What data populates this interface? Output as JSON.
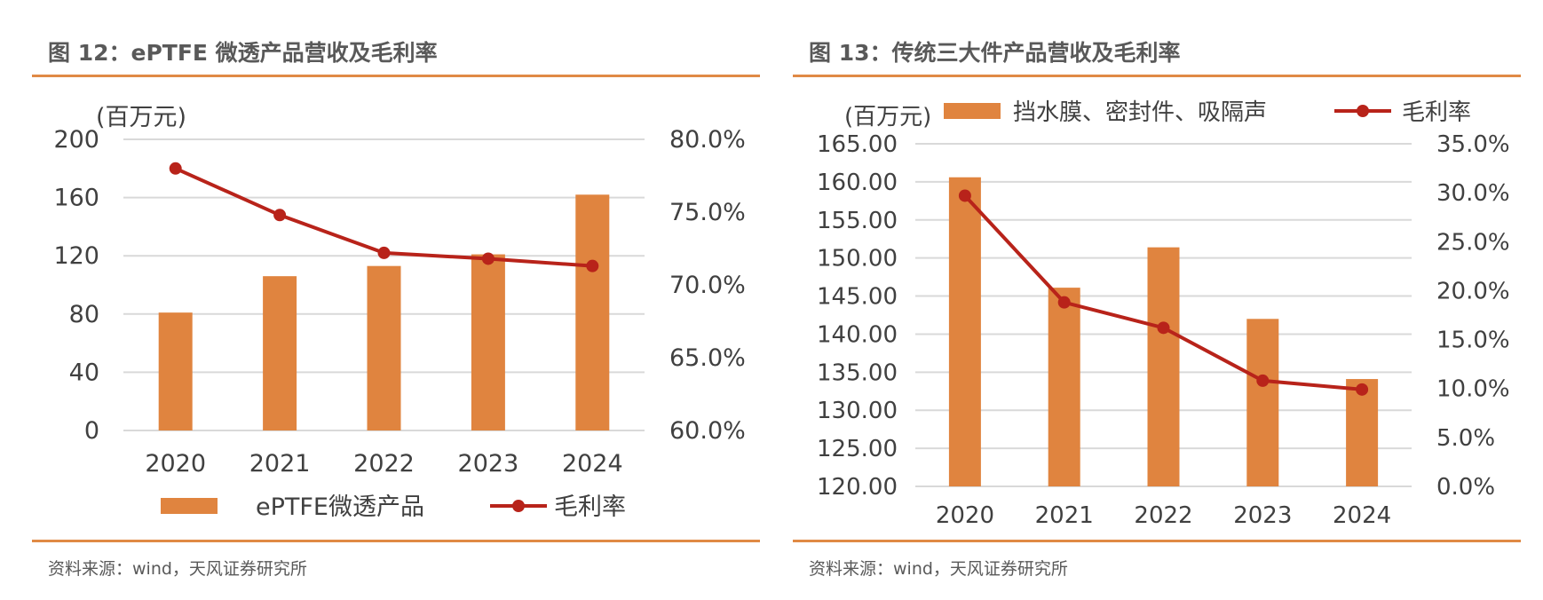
{
  "chart_data": [
    {
      "type": "bar+line",
      "title": "图 12：ePTFE 微透产品营收及毛利率",
      "unit_label": "(百万元)",
      "categories": [
        "2020",
        "2021",
        "2022",
        "2023",
        "2024"
      ],
      "left_axis": {
        "ylim": [
          0,
          200
        ],
        "ticks": [
          "0",
          "40",
          "80",
          "120",
          "160",
          "200"
        ]
      },
      "right_axis": {
        "ylim": [
          60,
          80
        ],
        "ticks": [
          "60.0%",
          "65.0%",
          "70.0%",
          "75.0%",
          "80.0%"
        ]
      },
      "series": [
        {
          "name": "ePTFE微透产品",
          "kind": "bar",
          "axis": "left",
          "color": "#E0843F",
          "values": [
            81,
            106,
            113,
            121,
            162
          ]
        },
        {
          "name": "毛利率",
          "kind": "line",
          "axis": "right",
          "color": "#B8231A",
          "values": [
            78.0,
            74.8,
            72.2,
            71.8,
            71.3
          ]
        }
      ],
      "legend_position": "bottom",
      "grid": true,
      "source": "资料来源：wind，天风证券研究所"
    },
    {
      "type": "bar+line",
      "title": "图 13：传统三大件产品营收及毛利率",
      "unit_label": "(百万元)",
      "categories": [
        "2020",
        "2021",
        "2022",
        "2023",
        "2024"
      ],
      "left_axis": {
        "ylim": [
          120,
          165
        ],
        "ticks": [
          "120.00",
          "125.00",
          "130.00",
          "135.00",
          "140.00",
          "145.00",
          "150.00",
          "155.00",
          "160.00",
          "165.00"
        ]
      },
      "right_axis": {
        "ylim": [
          0,
          35
        ],
        "ticks": [
          "0.0%",
          "5.0%",
          "10.0%",
          "15.0%",
          "20.0%",
          "25.0%",
          "30.0%",
          "35.0%"
        ]
      },
      "series": [
        {
          "name": "挡水膜、密封件、吸隔声",
          "kind": "bar",
          "axis": "left",
          "color": "#E0843F",
          "values": [
            160.6,
            146.1,
            151.4,
            142.0,
            134.1
          ]
        },
        {
          "name": "毛利率",
          "kind": "line",
          "axis": "right",
          "color": "#B8231A",
          "values": [
            29.7,
            18.8,
            16.2,
            10.8,
            9.9
          ]
        }
      ],
      "legend_position": "top",
      "grid": true,
      "source": "资料来源：wind，天风证券研究所"
    }
  ]
}
